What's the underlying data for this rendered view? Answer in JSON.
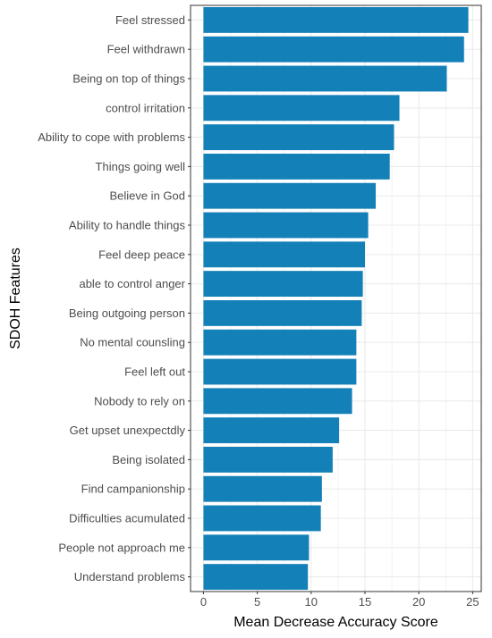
{
  "chart_data": {
    "type": "bar",
    "orientation": "horizontal",
    "categories": [
      "Feel stressed",
      "Feel withdrawn",
      "Being on top of things",
      "control irritation",
      "Ability to cope with problems",
      "Things going well",
      "Believe in God",
      "Ability to handle things",
      "Feel deep peace",
      "able to control anger",
      "Being outgoing person",
      "No mental counsling",
      "Feel left out",
      "Nobody to rely on",
      "Get upset unexpectdly",
      "Being isolated",
      "Find campanionship",
      "Difficulties acumulated",
      "People not approach me",
      "Understand problems"
    ],
    "values": [
      24.6,
      24.2,
      22.6,
      18.2,
      17.7,
      17.3,
      16.0,
      15.3,
      15.0,
      14.8,
      14.7,
      14.2,
      14.2,
      13.8,
      12.6,
      12.0,
      11.0,
      10.9,
      9.8,
      9.7
    ],
    "xlabel": "Mean Decrease Accuracy Score",
    "ylabel": "SDOH Features",
    "xlim": [
      -1.2,
      25.8
    ],
    "xticks": [
      0,
      5,
      10,
      15,
      20,
      25
    ],
    "grid": true,
    "bar_color": "#1380B8",
    "gridline_color": "#EBEBEB",
    "panel_border_color": "#333333"
  }
}
